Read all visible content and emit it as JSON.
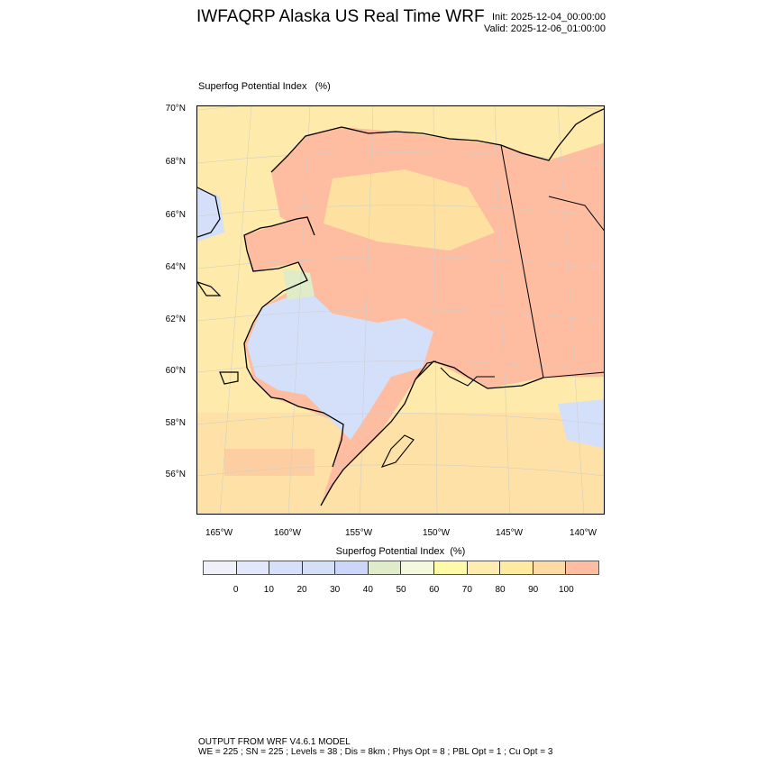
{
  "header": {
    "title": "IWFAQRP Alaska US Real Time WRF",
    "init": "Init: 2025-12-04_00:00:00",
    "valid": "Valid: 2025-12-06_01:00:00"
  },
  "map": {
    "field_label": "Superfog Potential Index   (%)",
    "lat_labels": [
      "70°N",
      "68°N",
      "66°N",
      "64°N",
      "62°N",
      "60°N",
      "58°N",
      "56°N"
    ],
    "lon_labels": [
      "165°W",
      "160°W",
      "155°W",
      "150°W",
      "145°W",
      "140°W"
    ],
    "colors": {
      "ocean": "#feeaaa",
      "land_high": "#febca0",
      "land_mid": "#fedaa4",
      "low": "#d4e0fa",
      "green": "#e0ecc8"
    }
  },
  "colorbar": {
    "title": "Superfog Potential Index  (%)",
    "labels": [
      "0",
      "10",
      "20",
      "30",
      "40",
      "50",
      "60",
      "70",
      "80",
      "90",
      "100"
    ],
    "colors": [
      "#eef2f8",
      "#e2e8fa",
      "#d6e0fa",
      "#d4e0f8",
      "#ccd6f8",
      "#e0ecc8",
      "#f4f8dc",
      "#fefaa8",
      "#feecb0",
      "#feeaa0",
      "#fedaa4",
      "#febca0"
    ]
  },
  "footer": {
    "line1": "OUTPUT FROM WRF V4.6.1 MODEL",
    "line2": "WE = 225 ; SN = 225 ; Levels = 38 ; Dis = 8km ; Phys Opt = 8 ; PBL Opt = 1 ; Cu Opt = 3"
  }
}
